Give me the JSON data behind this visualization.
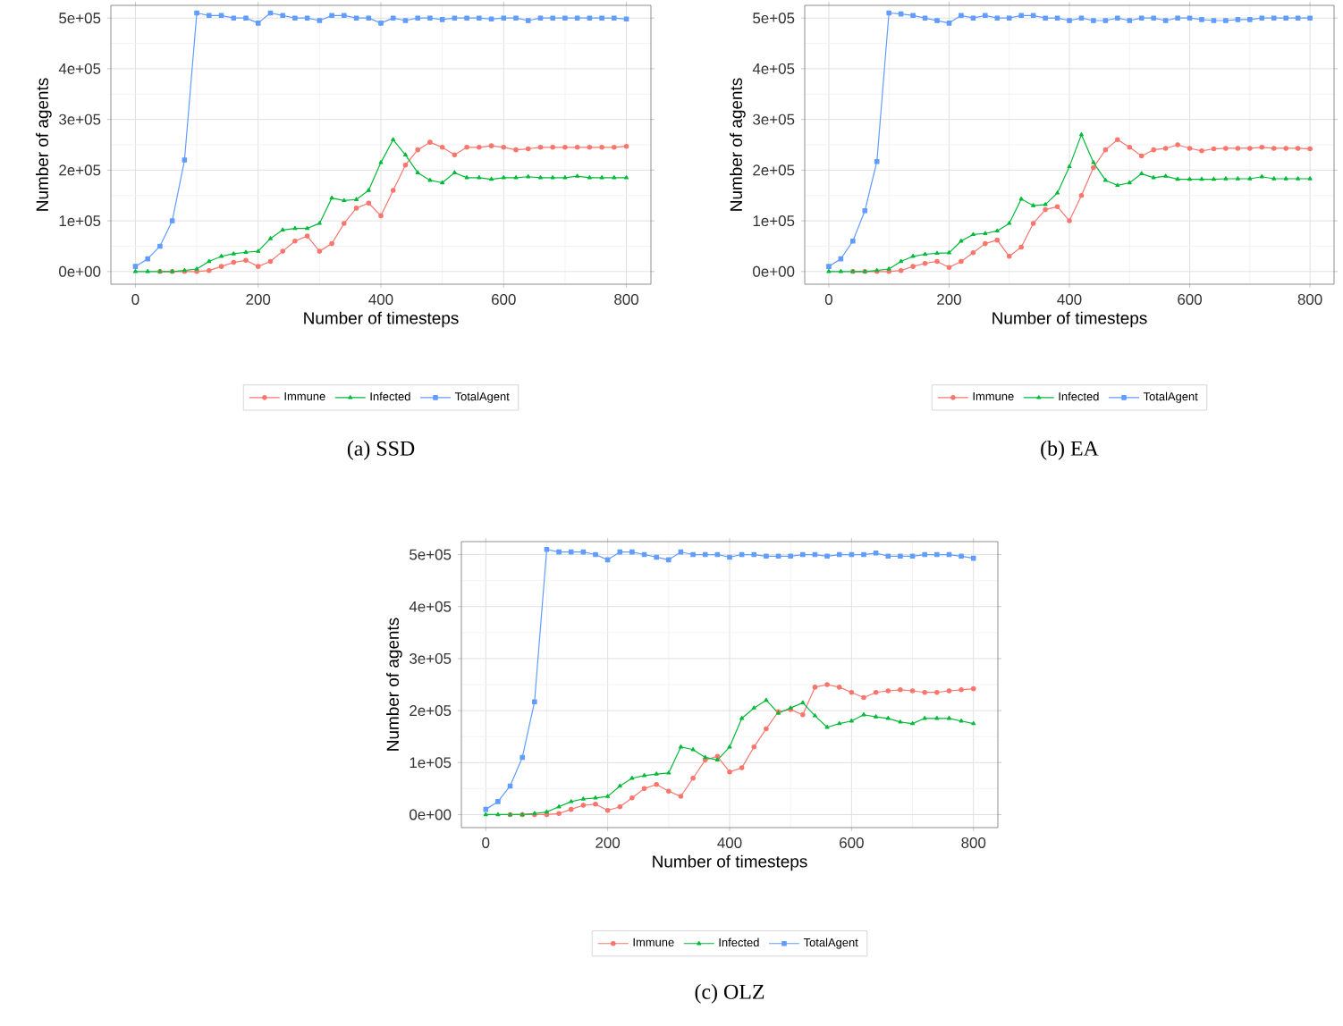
{
  "chart_data": [
    {
      "type": "line",
      "xlabel": "Number of timesteps",
      "ylabel": "Number of agents",
      "annotations": [
        "(a) SSD"
      ],
      "x": [
        0,
        20,
        40,
        60,
        80,
        100,
        120,
        140,
        160,
        180,
        200,
        220,
        240,
        260,
        280,
        300,
        320,
        340,
        360,
        380,
        400,
        420,
        440,
        460,
        480,
        500,
        520,
        540,
        560,
        580,
        600,
        620,
        640,
        660,
        680,
        700,
        720,
        740,
        760,
        780,
        800
      ],
      "xlim": [
        -40,
        840
      ],
      "ylim": [
        -25000,
        525000
      ],
      "xticks": [
        0,
        200,
        400,
        600,
        800
      ],
      "yticks": [
        {
          "value": 0,
          "label": "0e+00"
        },
        {
          "value": 100000,
          "label": "1e+05"
        },
        {
          "value": 200000,
          "label": "2e+05"
        },
        {
          "value": 300000,
          "label": "3e+05"
        },
        {
          "value": 400000,
          "label": "4e+05"
        },
        {
          "value": 500000,
          "label": "5e+05"
        }
      ],
      "grid": true,
      "legend": "bottom",
      "series": [
        {
          "name": "Immune",
          "color": "#f8766d",
          "marker": "circle",
          "values": [
            null,
            null,
            0,
            0,
            0,
            0,
            2000,
            10000,
            18000,
            22000,
            10000,
            20000,
            40000,
            60000,
            70000,
            40000,
            55000,
            95000,
            125000,
            135000,
            110000,
            160000,
            210000,
            240000,
            255000,
            245000,
            230000,
            245000,
            245000,
            248000,
            245000,
            240000,
            242000,
            245000,
            245000,
            245000,
            245000,
            245000,
            245000,
            245000,
            247000
          ]
        },
        {
          "name": "Infected",
          "color": "#00ba38",
          "marker": "triangle",
          "values": [
            0,
            0,
            0,
            0,
            2000,
            5000,
            20000,
            30000,
            35000,
            38000,
            40000,
            65000,
            82000,
            85000,
            85000,
            95000,
            145000,
            140000,
            142000,
            160000,
            215000,
            260000,
            230000,
            195000,
            180000,
            175000,
            195000,
            185000,
            185000,
            182000,
            185000,
            185000,
            187000,
            185000,
            185000,
            185000,
            188000,
            185000,
            185000,
            185000,
            185000
          ]
        },
        {
          "name": "TotalAgent",
          "color": "#619cff",
          "marker": "square",
          "values": [
            10000,
            25000,
            50000,
            100000,
            220000,
            510000,
            505000,
            505000,
            500000,
            500000,
            490000,
            510000,
            505000,
            500000,
            500000,
            495000,
            505000,
            505000,
            500000,
            500000,
            490000,
            500000,
            495000,
            500000,
            500000,
            497000,
            500000,
            500000,
            500000,
            498000,
            500000,
            500000,
            495000,
            500000,
            500000,
            500000,
            500000,
            500000,
            500000,
            500000,
            498000
          ]
        }
      ]
    },
    {
      "type": "line",
      "xlabel": "Number of timesteps",
      "ylabel": "Number of agents",
      "annotations": [
        "(b) EA"
      ],
      "x": [
        0,
        20,
        40,
        60,
        80,
        100,
        120,
        140,
        160,
        180,
        200,
        220,
        240,
        260,
        280,
        300,
        320,
        340,
        360,
        380,
        400,
        420,
        440,
        460,
        480,
        500,
        520,
        540,
        560,
        580,
        600,
        620,
        640,
        660,
        680,
        700,
        720,
        740,
        760,
        780,
        800
      ],
      "xlim": [
        -40,
        840
      ],
      "ylim": [
        -25000,
        525000
      ],
      "xticks": [
        0,
        200,
        400,
        600,
        800
      ],
      "yticks": [
        {
          "value": 0,
          "label": "0e+00"
        },
        {
          "value": 100000,
          "label": "1e+05"
        },
        {
          "value": 200000,
          "label": "2e+05"
        },
        {
          "value": 300000,
          "label": "3e+05"
        },
        {
          "value": 400000,
          "label": "4e+05"
        },
        {
          "value": 500000,
          "label": "5e+05"
        }
      ],
      "grid": true,
      "legend": "bottom",
      "series": [
        {
          "name": "Immune",
          "color": "#f8766d",
          "marker": "circle",
          "values": [
            null,
            null,
            0,
            0,
            0,
            0,
            2000,
            10000,
            16000,
            20000,
            8000,
            20000,
            37000,
            55000,
            62000,
            30000,
            48000,
            95000,
            122000,
            128000,
            100000,
            150000,
            205000,
            240000,
            260000,
            245000,
            228000,
            240000,
            243000,
            250000,
            243000,
            238000,
            242000,
            243000,
            243000,
            243000,
            245000,
            243000,
            243000,
            243000,
            242000
          ]
        },
        {
          "name": "Infected",
          "color": "#00ba38",
          "marker": "triangle",
          "values": [
            0,
            0,
            0,
            0,
            2000,
            5000,
            20000,
            30000,
            34000,
            36000,
            37000,
            60000,
            73000,
            75000,
            80000,
            95000,
            143000,
            130000,
            132000,
            155000,
            207000,
            270000,
            215000,
            180000,
            170000,
            175000,
            193000,
            185000,
            188000,
            182000,
            182000,
            182000,
            182000,
            183000,
            183000,
            183000,
            187000,
            183000,
            183000,
            183000,
            183000
          ]
        },
        {
          "name": "TotalAgent",
          "color": "#619cff",
          "marker": "square",
          "values": [
            10000,
            25000,
            60000,
            120000,
            217000,
            510000,
            508000,
            505000,
            500000,
            495000,
            490000,
            505000,
            500000,
            505000,
            500000,
            500000,
            505000,
            505000,
            500000,
            500000,
            495000,
            500000,
            495000,
            495000,
            500000,
            495000,
            500000,
            500000,
            495000,
            500000,
            500000,
            497000,
            495000,
            495000,
            497000,
            497000,
            500000,
            500000,
            500000,
            500000,
            500000
          ]
        }
      ]
    },
    {
      "type": "line",
      "xlabel": "Number of timesteps",
      "ylabel": "Number of agents",
      "annotations": [
        "(c) OLZ"
      ],
      "x": [
        0,
        20,
        40,
        60,
        80,
        100,
        120,
        140,
        160,
        180,
        200,
        220,
        240,
        260,
        280,
        300,
        320,
        340,
        360,
        380,
        400,
        420,
        440,
        460,
        480,
        500,
        520,
        540,
        560,
        580,
        600,
        620,
        640,
        660,
        680,
        700,
        720,
        740,
        760,
        780,
        800
      ],
      "xlim": [
        -40,
        840
      ],
      "ylim": [
        -25000,
        525000
      ],
      "xticks": [
        0,
        200,
        400,
        600,
        800
      ],
      "yticks": [
        {
          "value": 0,
          "label": "0e+00"
        },
        {
          "value": 100000,
          "label": "1e+05"
        },
        {
          "value": 200000,
          "label": "2e+05"
        },
        {
          "value": 300000,
          "label": "3e+05"
        },
        {
          "value": 400000,
          "label": "4e+05"
        },
        {
          "value": 500000,
          "label": "5e+05"
        }
      ],
      "grid": true,
      "legend": "bottom",
      "series": [
        {
          "name": "Immune",
          "color": "#f8766d",
          "marker": "circle",
          "values": [
            null,
            null,
            0,
            0,
            0,
            0,
            2000,
            10000,
            18000,
            20000,
            8000,
            15000,
            32000,
            50000,
            58000,
            45000,
            35000,
            70000,
            105000,
            112000,
            82000,
            90000,
            130000,
            165000,
            198000,
            202000,
            192000,
            245000,
            250000,
            245000,
            235000,
            225000,
            235000,
            238000,
            240000,
            238000,
            235000,
            235000,
            238000,
            240000,
            242000
          ]
        },
        {
          "name": "Infected",
          "color": "#00ba38",
          "marker": "triangle",
          "values": [
            0,
            0,
            0,
            0,
            2000,
            5000,
            15000,
            25000,
            30000,
            32000,
            35000,
            55000,
            70000,
            75000,
            78000,
            80000,
            130000,
            125000,
            110000,
            105000,
            130000,
            185000,
            205000,
            220000,
            195000,
            205000,
            215000,
            190000,
            168000,
            175000,
            180000,
            192000,
            188000,
            185000,
            178000,
            175000,
            185000,
            185000,
            185000,
            180000,
            175000
          ]
        },
        {
          "name": "TotalAgent",
          "color": "#619cff",
          "marker": "square",
          "values": [
            10000,
            25000,
            55000,
            110000,
            217000,
            510000,
            505000,
            505000,
            505000,
            500000,
            490000,
            505000,
            505000,
            500000,
            495000,
            490000,
            505000,
            500000,
            500000,
            500000,
            495000,
            500000,
            500000,
            497000,
            497000,
            497000,
            500000,
            500000,
            497000,
            500000,
            500000,
            500000,
            503000,
            497000,
            497000,
            497000,
            500000,
            500000,
            500000,
            497000,
            493000
          ]
        }
      ]
    }
  ]
}
